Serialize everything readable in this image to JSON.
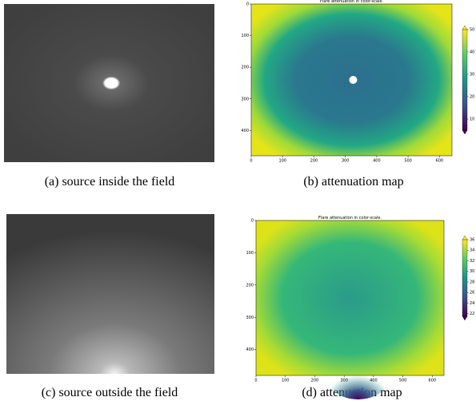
{
  "subfigures": [
    {
      "caption": "(a)  source inside the field"
    },
    {
      "caption": "(b)  attenuation map",
      "plot": {
        "type": "heatmap",
        "title": "Flare attenuation in color-scale.",
        "xlim": [
          0,
          640
        ],
        "ylim": [
          480,
          0
        ],
        "xticks": [
          0,
          100,
          200,
          300,
          400,
          500,
          600
        ],
        "yticks": [
          0,
          100,
          200,
          300,
          400
        ],
        "clim": [
          5,
          50
        ],
        "cticks": [
          10,
          20,
          30,
          40,
          50
        ]
      }
    },
    {
      "caption": "(c)  source outside the field"
    },
    {
      "caption": "(d)  attenuation map",
      "plot": {
        "type": "heatmap",
        "title": "Flare attenuation in color-scale.",
        "xlim": [
          0,
          640
        ],
        "ylim": [
          480,
          0
        ],
        "xticks": [
          0,
          100,
          200,
          300,
          400,
          500,
          600
        ],
        "yticks": [
          0,
          100,
          200,
          300,
          400
        ],
        "clim": [
          21.5,
          36
        ],
        "cticks": [
          22,
          24,
          26,
          28,
          30,
          32,
          34,
          36
        ]
      }
    }
  ]
}
